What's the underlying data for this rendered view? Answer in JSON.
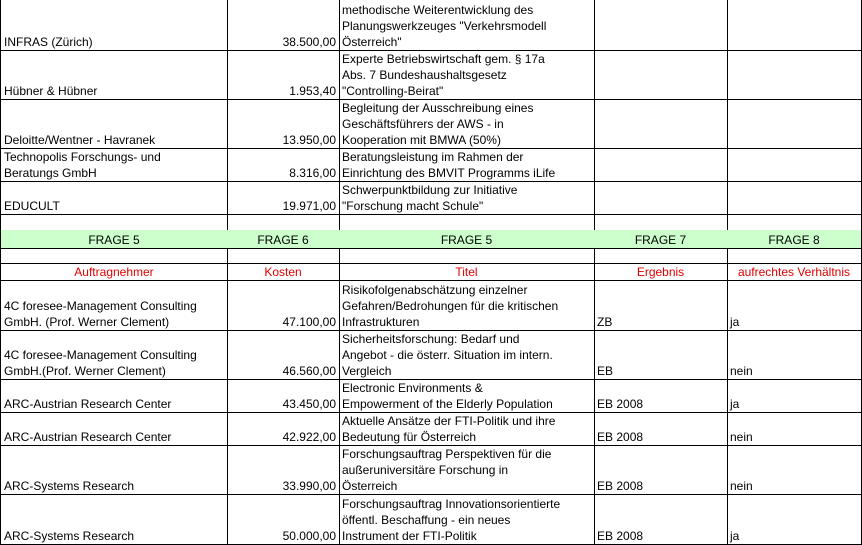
{
  "table": {
    "top_rows": [
      [
        "INFRAS (Zürich)",
        "38.500,00",
        "methodische Weiterentwicklung des\nPlanungswerkzeuges \"Verkehrsmodell\nÖsterreich\"",
        null,
        null
      ],
      [
        "Hübner & Hübner",
        "1.953,40",
        "Experte Betriebswirtschaft gem. § 17a\nAbs. 7 Bundeshaushaltsgesetz\n\"Controlling-Beirat\"",
        null,
        null
      ],
      [
        "Deloitte/Wentner - Havranek",
        "13.950,00",
        "Begleitung der Ausschreibung eines\nGeschäftsführers der AWS - in\nKooperation mit BMWA (50%)",
        null,
        null
      ],
      [
        "Technopolis Forschungs- und\nBeratungs GmbH",
        "8.316,00",
        "Beratungsleistung im Rahmen der\nEinrichtung des BMVIT Programms iLife",
        null,
        null
      ],
      [
        "EDUCULT",
        "19.971,00",
        "Schwerpunktbildung zur Initiative\n\"Forschung macht Schule\"",
        null,
        null
      ]
    ],
    "section_header": [
      "FRAGE 5",
      "FRAGE 6",
      "FRAGE 5",
      "FRAGE 7",
      "FRAGE 8"
    ],
    "column_headers": [
      "Auftragnehmer",
      "Kosten",
      "Titel",
      "Ergebnis",
      "aufrechtes Verhältnis"
    ],
    "rows": [
      [
        "4C foresee-Management Consulting\nGmbH. (Prof. Werner Clement)",
        "47.100,00",
        "Risikofolgenabschätzung einzelner\nGefahren/Bedrohungen für die kritischen\nInfrastrukturen",
        "ZB",
        "ja"
      ],
      [
        "4C foresee-Management Consulting\nGmbH.(Prof. Werner Clement)",
        "46.560,00",
        "Sicherheitsforschung: Bedarf und\nAngebot - die österr. Situation im intern.\nVergleich",
        "EB",
        "nein"
      ],
      [
        "ARC-Austrian Research Center",
        "43.450,00",
        "Electronic Environments &\nEmpowerment of the Elderly Population",
        "EB 2008",
        "ja"
      ],
      [
        "ARC-Austrian Research Center",
        "42.922,00",
        "Aktuelle Ansätze der FTI-Politik und ihre\nBedeutung für Österreich",
        "EB 2008",
        "nein"
      ],
      [
        "ARC-Systems Research",
        "33.990,00",
        "Forschungsauftrag Perspektiven für die\naußeruniversitäre Forschung in\nÖsterreich",
        "EB 2008",
        "nein"
      ],
      [
        "ARC-Systems Research",
        "50.000,00",
        "Forschungsauftrag Innovationsorientierte\nöffentl. Beschaffung - ein neues\nInstrument der FTI-Politik",
        "EB 2008",
        "ja"
      ]
    ]
  }
}
